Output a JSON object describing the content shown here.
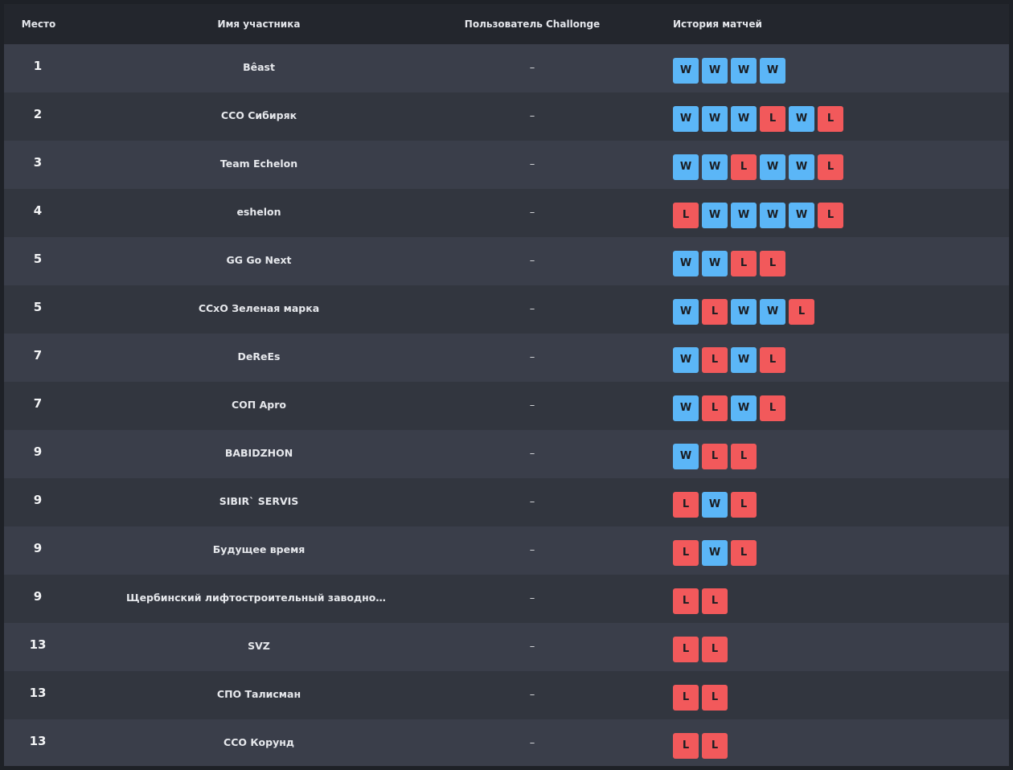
{
  "table": {
    "headers": {
      "place": "Место",
      "name": "Имя участника",
      "user": "Пользователь Challonge",
      "history": "История матчей"
    },
    "colors": {
      "win": "#5bb6f7",
      "loss": "#f2595b",
      "header_bg": "#23262d",
      "row_bg": "#3a3e4a",
      "row_alt_bg": "#32363f"
    },
    "rows": [
      {
        "place": "1",
        "name": "Bêast",
        "user": "–",
        "history": [
          "W",
          "W",
          "W",
          "W"
        ]
      },
      {
        "place": "2",
        "name": "ССО Сибиряк",
        "user": "–",
        "history": [
          "W",
          "W",
          "W",
          "L",
          "W",
          "L"
        ]
      },
      {
        "place": "3",
        "name": "Team Echelon",
        "user": "–",
        "history": [
          "W",
          "W",
          "L",
          "W",
          "W",
          "L"
        ]
      },
      {
        "place": "4",
        "name": "eshelon",
        "user": "–",
        "history": [
          "L",
          "W",
          "W",
          "W",
          "W",
          "L"
        ]
      },
      {
        "place": "5",
        "name": "GG Go Next",
        "user": "–",
        "history": [
          "W",
          "W",
          "L",
          "L"
        ]
      },
      {
        "place": "5",
        "name": "ССхО Зеленая марка",
        "user": "–",
        "history": [
          "W",
          "L",
          "W",
          "W",
          "L"
        ]
      },
      {
        "place": "7",
        "name": "DeReEs",
        "user": "–",
        "history": [
          "W",
          "L",
          "W",
          "L"
        ]
      },
      {
        "place": "7",
        "name": "СОП Apro",
        "user": "–",
        "history": [
          "W",
          "L",
          "W",
          "L"
        ]
      },
      {
        "place": "9",
        "name": "BABIDZHON",
        "user": "–",
        "history": [
          "W",
          "L",
          "L"
        ]
      },
      {
        "place": "9",
        "name": "SIBIR` SERVIS",
        "user": "–",
        "history": [
          "L",
          "W",
          "L"
        ]
      },
      {
        "place": "9",
        "name": "Будущее время",
        "user": "–",
        "history": [
          "L",
          "W",
          "L"
        ]
      },
      {
        "place": "9",
        "name": "Щербинский лифтостроительный заводной апе…",
        "user": "–",
        "history": [
          "L",
          "L"
        ]
      },
      {
        "place": "13",
        "name": "SVZ",
        "user": "–",
        "history": [
          "L",
          "L"
        ]
      },
      {
        "place": "13",
        "name": "СПО Талисман",
        "user": "–",
        "history": [
          "L",
          "L"
        ]
      },
      {
        "place": "13",
        "name": "ССО Корунд",
        "user": "–",
        "history": [
          "L",
          "L"
        ]
      }
    ]
  }
}
